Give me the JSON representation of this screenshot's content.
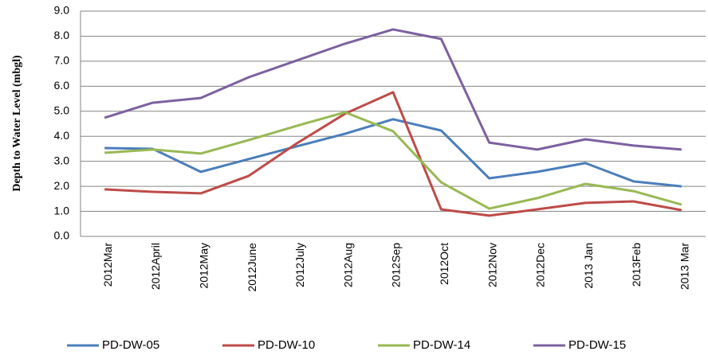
{
  "chart_data": {
    "type": "line",
    "y_label": "Depth to Water Level (mbgl)",
    "categories": [
      "2012Mar",
      "2012April",
      "2012May",
      "2012June",
      "2012July",
      "2012Aug",
      "2012Sep",
      "2012Oct",
      "2012Nov",
      "2012Dec",
      "2013 Jan",
      "2013Feb",
      "2013 Mar"
    ],
    "series": [
      {
        "name": "PD-DW-05",
        "color": "#4a7ebb",
        "values": [
          3.53,
          3.5,
          2.58,
          3.09,
          3.6,
          4.1,
          4.68,
          4.23,
          2.32,
          2.58,
          2.93,
          2.2,
          2.0
        ]
      },
      {
        "name": "PD-DW-10",
        "color": "#be4b48",
        "values": [
          1.88,
          1.78,
          1.72,
          2.42,
          3.72,
          4.9,
          5.76,
          1.08,
          0.83,
          1.08,
          1.34,
          1.4,
          1.05
        ]
      },
      {
        "name": "PD-DW-14",
        "color": "#98b954",
        "values": [
          3.34,
          3.47,
          3.31,
          3.85,
          4.42,
          4.96,
          4.2,
          2.16,
          1.11,
          1.53,
          2.1,
          1.81,
          1.27
        ]
      },
      {
        "name": "PD-DW-15",
        "color": "#7d60a0",
        "values": [
          4.74,
          5.34,
          5.53,
          6.36,
          7.03,
          7.7,
          8.27,
          7.89,
          3.75,
          3.47,
          3.88,
          3.63,
          3.47
        ]
      }
    ],
    "ylim": [
      0,
      9
    ],
    "yticks": [
      {
        "value": 0,
        "label": "0.0"
      },
      {
        "value": 1,
        "label": "1.0"
      },
      {
        "value": 2,
        "label": "2.0"
      },
      {
        "value": 3,
        "label": "3.0"
      },
      {
        "value": 4,
        "label": "4.0"
      },
      {
        "value": 5,
        "label": "5.0"
      },
      {
        "value": 6,
        "label": "6.0"
      },
      {
        "value": 7,
        "label": "7.0"
      },
      {
        "value": 8,
        "label": "8.0"
      },
      {
        "value": 9,
        "label": "9.0"
      }
    ],
    "grid": true,
    "legend": "bottom"
  }
}
